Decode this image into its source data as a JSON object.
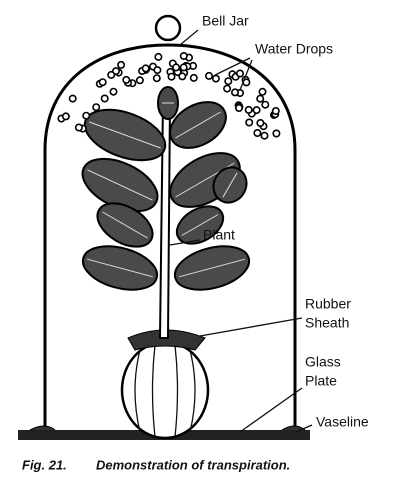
{
  "labels": [
    {
      "lines": [
        "Bell Jar"
      ]
    },
    {
      "lines": [
        "Water Drops"
      ]
    },
    {
      "lines": [
        "Plant"
      ]
    },
    {
      "lines": [
        "Rubber",
        "Sheath"
      ]
    },
    {
      "lines": [
        "Glass",
        "Plate"
      ]
    },
    {
      "lines": [
        "Vaseline"
      ]
    }
  ],
  "caption": {
    "figure": "Fig. 21.",
    "text": "Demonstration of transpiration."
  }
}
